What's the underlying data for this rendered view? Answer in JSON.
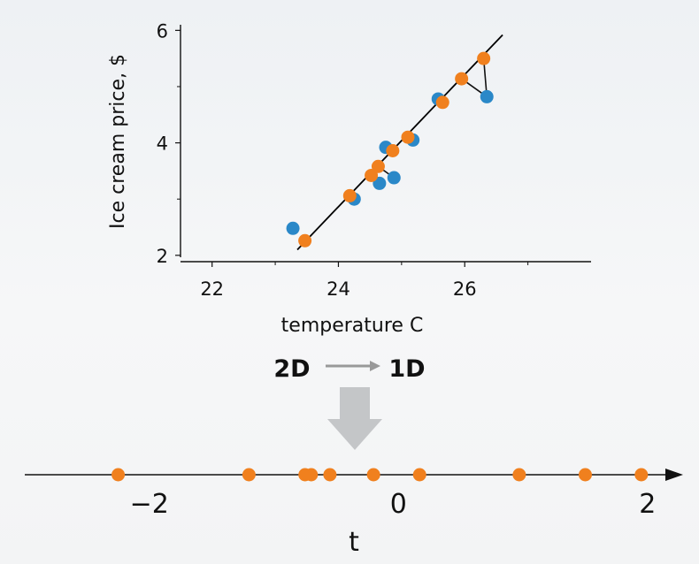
{
  "chart_data": [
    {
      "type": "scatter",
      "xlabel": "temperature C",
      "ylabel": "Ice cream price, $",
      "xlim": [
        21.5,
        28.0
      ],
      "ylim": [
        1.95,
        6.1
      ],
      "x_ticks": [
        22,
        24,
        26
      ],
      "y_ticks": [
        2,
        4,
        6
      ],
      "x_tick_labels": [
        "22",
        "24",
        "26"
      ],
      "y_tick_labels": [
        "2",
        "4",
        "6"
      ],
      "fit_line": {
        "x": [
          23.35,
          26.6
        ],
        "y": [
          2.1,
          5.92
        ]
      },
      "series": [
        {
          "x": [
            23.28,
            24.25,
            24.65,
            24.75,
            24.88,
            25.18,
            25.58,
            26.35
          ],
          "y": [
            2.48,
            3.0,
            3.28,
            3.92,
            3.38,
            4.05,
            4.78,
            4.82
          ]
        },
        {
          "x": [
            23.47,
            24.18,
            24.52,
            24.63,
            24.86,
            25.1,
            25.65,
            25.95,
            26.3
          ],
          "y": [
            2.26,
            3.06,
            3.42,
            3.58,
            3.86,
            4.1,
            4.72,
            5.14,
            5.5
          ]
        }
      ],
      "projections": [
        {
          "from": [
            26.3,
            5.5
          ],
          "to": [
            26.35,
            4.82
          ]
        },
        {
          "from": [
            25.95,
            5.14
          ],
          "to": [
            26.35,
            4.82
          ]
        },
        {
          "from": [
            24.63,
            3.58
          ],
          "to": [
            24.88,
            3.38
          ]
        }
      ],
      "colors": {
        "series_a": "#2a88c8",
        "series_b": "#f0801e",
        "line": "#000000"
      }
    },
    {
      "type": "scatter",
      "xlabel": "t",
      "xlim": [
        -3.0,
        2.2
      ],
      "x_ticks": [
        -2,
        0,
        2
      ],
      "x_tick_labels": [
        "−2",
        "0",
        "2"
      ],
      "series": [
        {
          "x": [
            -2.25,
            -1.2,
            -0.75,
            -0.7,
            -0.55,
            -0.2,
            0.17,
            0.97,
            1.5,
            1.95
          ],
          "y": [
            0,
            0,
            0,
            0,
            0,
            0,
            0,
            0,
            0,
            0
          ]
        }
      ],
      "colors": {
        "point": "#f0801e"
      }
    }
  ],
  "transform": {
    "from_label": "2D",
    "to_label": "1D"
  }
}
